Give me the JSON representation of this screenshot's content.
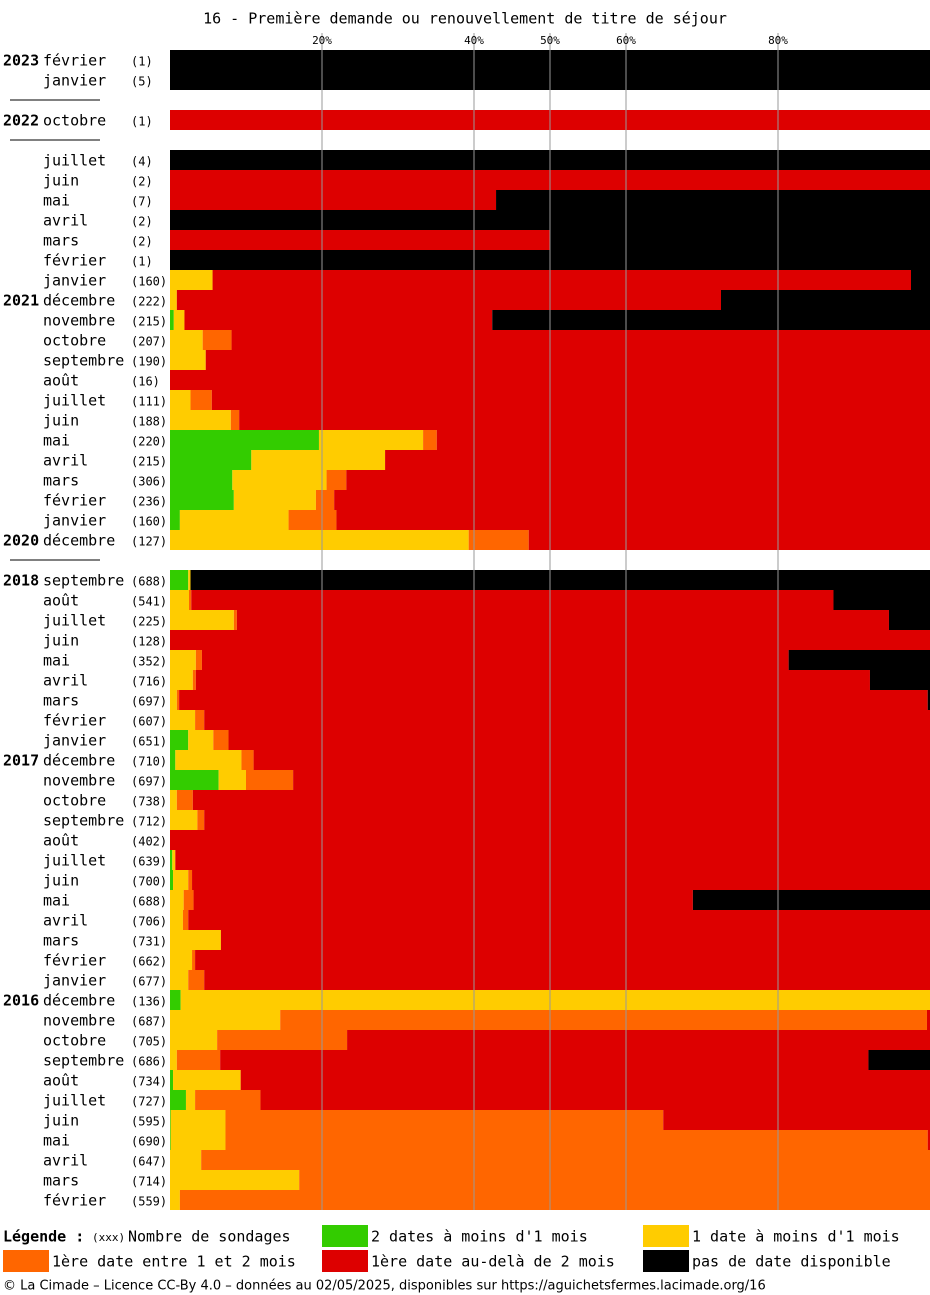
{
  "chart_data": {
    "type": "stacked_barh",
    "title": "16 - Première demande ou renouvellement de titre de séjour",
    "xlim": [
      0,
      100
    ],
    "xticks": [
      {
        "value": 20,
        "label": "20%"
      },
      {
        "value": 40,
        "label": "40%"
      },
      {
        "value": 50,
        "label": "50%"
      },
      {
        "value": 60,
        "label": "60%"
      },
      {
        "value": 80,
        "label": "80%"
      }
    ],
    "grid": true,
    "years": [
      "2023",
      null,
      null,
      "2022",
      null,
      null,
      null,
      null,
      null,
      null,
      null,
      null,
      "2021",
      null,
      null,
      null,
      null,
      null,
      null,
      null,
      null,
      null,
      null,
      null,
      "2020",
      null,
      "2018",
      null,
      null,
      null,
      null,
      null,
      null,
      null,
      null,
      "2017",
      null,
      null,
      null,
      null,
      null,
      null,
      null,
      null,
      null,
      null,
      null,
      "2016",
      null,
      null,
      null,
      null,
      null,
      null,
      null,
      null,
      null,
      null
    ],
    "categories": [
      "février",
      "janvier",
      null,
      "octobre",
      null,
      "juillet",
      "juin",
      "mai",
      "avril",
      "mars",
      "février",
      "janvier",
      "décembre",
      "novembre",
      "octobre",
      "septembre",
      "août",
      "juillet",
      "juin",
      "mai",
      "avril",
      "mars",
      "février",
      "janvier",
      "décembre",
      null,
      "septembre",
      "août",
      "juillet",
      "juin",
      "mai",
      "avril",
      "mars",
      "février",
      "janvier",
      "décembre",
      "novembre",
      "octobre",
      "septembre",
      "août",
      "juillet",
      "juin",
      "mai",
      "avril",
      "mars",
      "février",
      "janvier",
      "décembre",
      "novembre",
      "octobre",
      "septembre",
      "août",
      "juillet",
      "juin",
      "mai",
      "avril",
      "mars",
      "février"
    ],
    "count_labels": [
      "(1)",
      "(5)",
      null,
      "(1)",
      null,
      "(4)",
      "(2)",
      "(7)",
      "(2)",
      "(2)",
      "(1)",
      "(160)",
      "(222)",
      "(215)",
      "(207)",
      "(190)",
      "(16)",
      "(111)",
      "(188)",
      "(220)",
      "(215)",
      "(306)",
      "(236)",
      "(160)",
      "(127)",
      null,
      "(688)",
      "(541)",
      "(225)",
      "(128)",
      "(352)",
      "(716)",
      "(697)",
      "(607)",
      "(651)",
      "(710)",
      "(697)",
      "(738)",
      "(712)",
      "(402)",
      "(639)",
      "(700)",
      "(688)",
      "(706)",
      "(731)",
      "(662)",
      "(677)",
      "(136)",
      "(687)",
      "(705)",
      "(686)",
      "(734)",
      "(727)",
      "(595)",
      "(690)",
      "(647)",
      "(714)",
      "(559)"
    ],
    "series": [
      {
        "name": "2 dates à moins d'1 mois",
        "color": "#33cc00",
        "values": [
          0,
          0,
          null,
          0,
          null,
          0,
          0,
          0,
          0,
          0,
          0,
          0,
          0,
          0.5,
          0,
          0,
          0,
          0,
          0,
          19.6,
          10.7,
          8.2,
          8.4,
          1.3,
          0,
          null,
          2.4,
          0,
          0,
          0,
          0,
          0,
          0,
          0,
          2.4,
          0.7,
          6.4,
          0,
          0,
          0,
          0.3,
          0.4,
          0,
          0,
          0,
          0,
          0,
          1.4,
          0,
          0,
          0,
          0.4,
          2.1,
          0.1,
          0.1,
          0,
          0,
          0
        ]
      },
      {
        "name": "1 date à moins d'1 mois",
        "color": "#ffcc00",
        "values": [
          0,
          0,
          null,
          0,
          null,
          0,
          0,
          0,
          0,
          0,
          0,
          5.6,
          0.9,
          1.4,
          4.3,
          4.7,
          0,
          2.7,
          8.0,
          13.7,
          17.6,
          12.4,
          10.8,
          14.3,
          39.3,
          null,
          0.3,
          2.5,
          8.4,
          0,
          3.4,
          3.0,
          0.9,
          3.3,
          3.3,
          8.7,
          3.6,
          0.9,
          3.6,
          0,
          0.4,
          2.0,
          1.8,
          1.7,
          6.7,
          2.9,
          2.4,
          98.6,
          14.5,
          6.2,
          0.9,
          8.9,
          1.2,
          7.2,
          7.2,
          4.1,
          17.0,
          1.3
        ]
      },
      {
        "name": "1ère date entre 1 et 2 mois",
        "color": "#ff6600",
        "values": [
          0,
          0,
          null,
          0,
          null,
          0,
          0,
          0,
          0,
          0,
          0,
          0,
          0,
          0,
          3.8,
          0,
          0,
          2.8,
          1.1,
          1.8,
          0,
          2.6,
          2.4,
          6.3,
          7.9,
          null,
          0,
          0.3,
          0.4,
          0,
          0.8,
          0.4,
          0.3,
          1.2,
          2.0,
          1.6,
          6.2,
          2.1,
          0.9,
          0,
          0,
          0.5,
          1.3,
          0.7,
          0,
          0.4,
          2.1,
          0,
          85.1,
          17.1,
          5.7,
          0,
          8.6,
          57.6,
          92.4,
          95.9,
          83.0,
          98.7
        ]
      },
      {
        "name": "1ère date au-delà de 2 mois",
        "color": "#dd0000",
        "values": [
          0,
          0,
          null,
          100,
          null,
          0,
          100,
          42.9,
          0,
          50,
          0,
          91.9,
          71.6,
          40.5,
          91.9,
          95.3,
          100,
          94.5,
          90.9,
          64.9,
          71.7,
          76.8,
          78.4,
          78.1,
          52.8,
          null,
          0,
          84.5,
          85.8,
          100,
          77.2,
          88.7,
          98.5,
          95.5,
          92.3,
          89.0,
          83.8,
          97.0,
          95.5,
          100,
          99.3,
          97.1,
          65.7,
          97.6,
          93.3,
          96.7,
          95.5,
          0,
          0.4,
          76.7,
          85.3,
          90.7,
          88.1,
          35.1,
          0.3,
          0,
          0,
          0
        ]
      },
      {
        "name": "pas de date disponible",
        "color": "#000000",
        "values": [
          100,
          100,
          null,
          0,
          null,
          100,
          0,
          57.1,
          100,
          50,
          100,
          2.5,
          27.5,
          57.6,
          0,
          0,
          0,
          0,
          0,
          0,
          0,
          0,
          0,
          0,
          0,
          null,
          97.3,
          12.7,
          5.4,
          0,
          18.6,
          7.9,
          0.3,
          0,
          0,
          0,
          0,
          0,
          0,
          0,
          0,
          0,
          31.2,
          0,
          0,
          0,
          0,
          0,
          0,
          0,
          8.1,
          0,
          0,
          0,
          0,
          0,
          0,
          0
        ]
      }
    ],
    "legend_title": "Légende :",
    "count_legend": {
      "symbol": "(xxx)",
      "label": "Nombre de sondages"
    },
    "footer": "© La Cimade – Licence CC-By 4.0 – données au 02/05/2025, disponibles sur https://aguichetsfermes.lacimade.org/16"
  }
}
